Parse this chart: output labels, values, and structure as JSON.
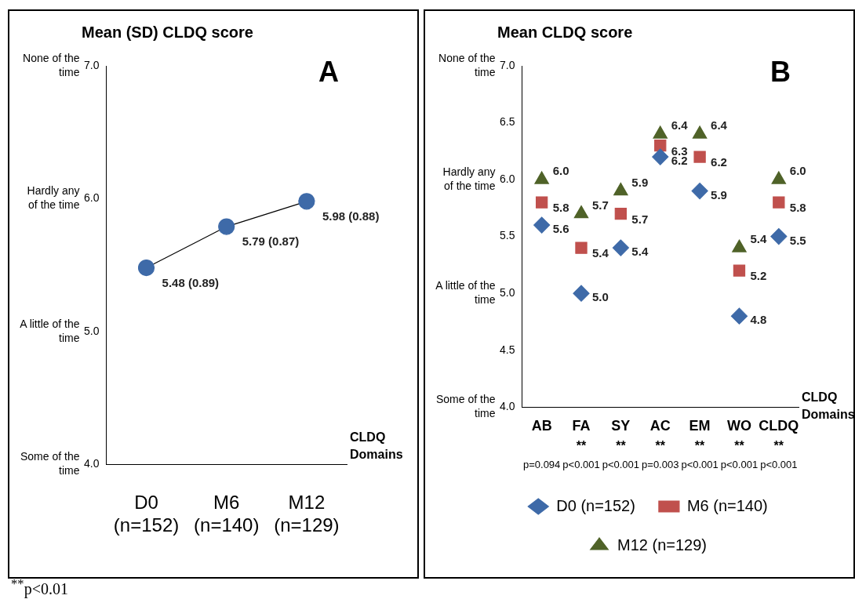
{
  "chart_data": [
    {
      "type": "line",
      "title": "Mean (SD) CLDQ score",
      "xlabel": "CLDQ Domains",
      "categories": [
        "D0 (n=152)",
        "M6 (n=140)",
        "M12 (n=129)"
      ],
      "series": [
        {
          "color": "#3e6aa8",
          "values": [
            5.48,
            5.79,
            5.98
          ],
          "value_labels": [
            "5.48 (0.89)",
            "5.79 (0.87)",
            "5.98 (0.88)"
          ]
        }
      ],
      "ylim": [
        4,
        7
      ],
      "yticks": [
        {
          "value": 4,
          "label": "4.0"
        },
        {
          "value": 5,
          "label": "5.0"
        },
        {
          "value": 6,
          "label": "6.0"
        },
        {
          "value": 7,
          "label": "7.0"
        }
      ],
      "grid": false,
      "legend": false,
      "marker": "circle",
      "line_style": "solid",
      "annotations": [
        "A",
        "None of the time",
        "Hardly any of the time",
        "A little of the time",
        "Some of the time",
        "$^{**}$p<0.01"
      ]
    },
    {
      "type": "scatter",
      "title": "Mean CLDQ score",
      "xlabel": "CLDQ Domains",
      "categories": [
        "AB",
        "FA",
        "SY",
        "AC",
        "EM",
        "WO",
        "CLDQ"
      ],
      "series": [
        {
          "name": "D0 (n=152)",
          "color": "#3e6aa8",
          "marker": "diamond",
          "values": [
            5.6,
            5.0,
            5.4,
            6.2,
            5.9,
            4.8,
            5.5
          ],
          "value_labels": [
            "5.6",
            "5.0",
            "5.4",
            "6.2",
            "5.9",
            "4.8",
            "5.5"
          ]
        },
        {
          "name": "M6 (n=140)",
          "color": "#c0504d",
          "marker": "square",
          "values": [
            5.8,
            5.4,
            5.7,
            6.3,
            6.2,
            5.2,
            5.8
          ],
          "value_labels": [
            "5.8",
            "5.4",
            "5.7",
            "6.3",
            "6.2",
            "5.2",
            "5.8"
          ]
        },
        {
          "name": "M12 (n=129)",
          "color": "#4f6228",
          "marker": "triangle",
          "values": [
            6.0,
            5.7,
            5.9,
            6.4,
            6.4,
            5.4,
            6.0
          ],
          "value_labels": [
            "6.0",
            "5.7",
            "5.9",
            "6.4",
            "6.4",
            "5.4",
            "6.0"
          ]
        }
      ],
      "ylim": [
        4,
        7
      ],
      "yticks": [
        {
          "value": 4,
          "label": "4.0"
        },
        {
          "value": 4.5,
          "label": "4.5"
        },
        {
          "value": 5,
          "label": "5.0"
        },
        {
          "value": 5.5,
          "label": "5.5"
        },
        {
          "value": 6,
          "label": "6.0"
        },
        {
          "value": 6.5,
          "label": "6.5"
        },
        {
          "value": 7,
          "label": "7.0"
        }
      ],
      "grid": false,
      "legend": "bottom",
      "annotations": [
        "B",
        "None of the time",
        "Hardly any of the time",
        "A little of the time",
        "Some of the time",
        "** ** ** ** ** **",
        "p=0.094 p<0.001 p<0.001 p=0.003 p<0.001 p<0.001 p<0.001"
      ]
    }
  ]
}
